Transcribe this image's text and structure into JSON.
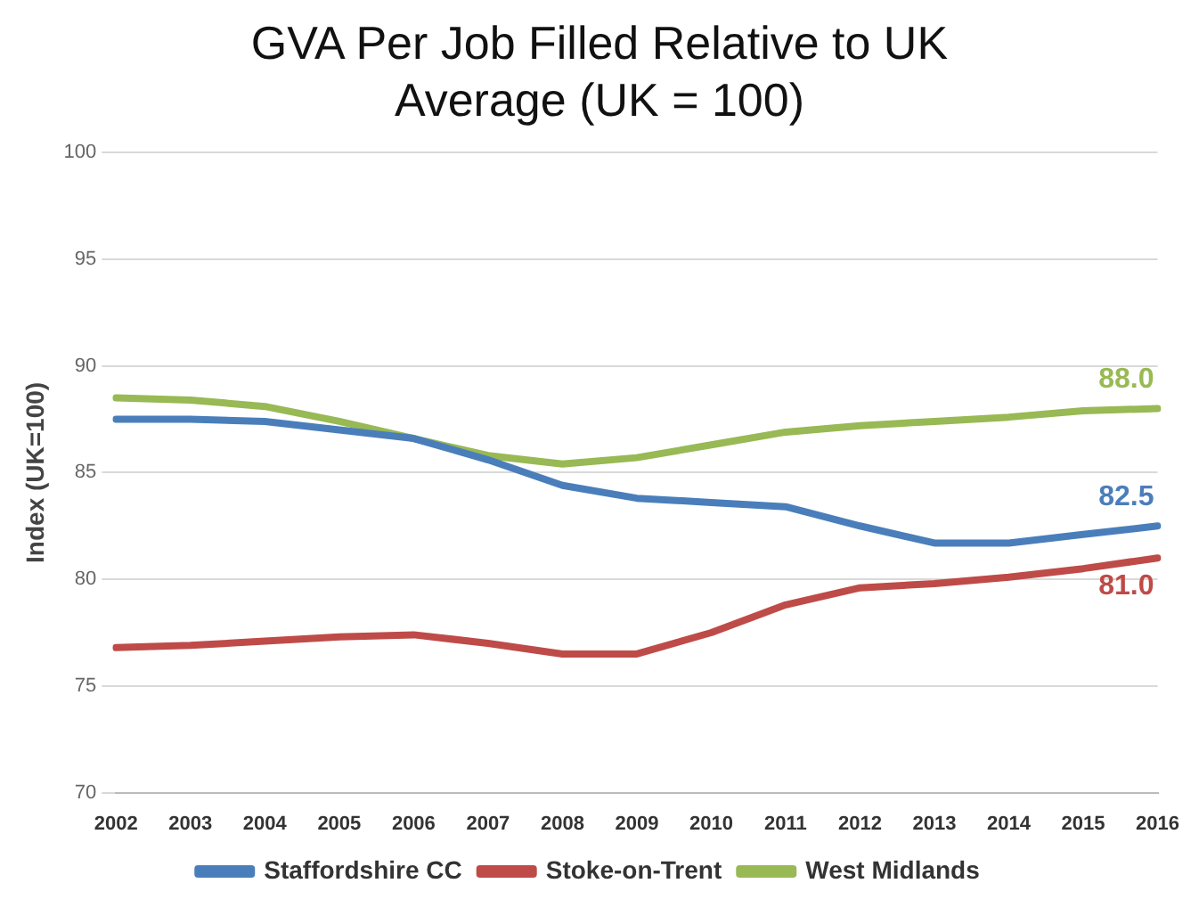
{
  "chart_data": {
    "type": "line",
    "title": "GVA Per Job Filled Relative to UK Average (UK = 100)",
    "ylabel": "Index (UK=100)",
    "categories": [
      "2002",
      "2003",
      "2004",
      "2005",
      "2006",
      "2007",
      "2008",
      "2009",
      "2010",
      "2011",
      "2012",
      "2013",
      "2014",
      "2015",
      "2016"
    ],
    "series": [
      {
        "name": "Staffordshire CC",
        "color": "#4a7ebb",
        "values": [
          87.5,
          87.5,
          87.4,
          87.0,
          86.6,
          85.6,
          84.4,
          83.8,
          83.6,
          83.4,
          82.5,
          81.7,
          81.7,
          82.1,
          82.5
        ],
        "value_labels": [
          null,
          null,
          null,
          null,
          null,
          null,
          null,
          null,
          null,
          null,
          null,
          null,
          null,
          null,
          "82.5"
        ]
      },
      {
        "name": "Stoke-on-Trent",
        "color": "#be4b48",
        "values": [
          76.8,
          76.9,
          77.1,
          77.3,
          77.4,
          77.0,
          76.5,
          76.5,
          77.5,
          78.8,
          79.6,
          79.8,
          80.1,
          80.5,
          81.0
        ],
        "value_labels": [
          null,
          null,
          null,
          null,
          null,
          null,
          null,
          null,
          null,
          null,
          null,
          null,
          null,
          null,
          "81.0"
        ]
      },
      {
        "name": "West Midlands",
        "color": "#98b954",
        "values": [
          88.5,
          88.4,
          88.1,
          87.4,
          86.6,
          85.8,
          85.4,
          85.7,
          86.3,
          86.9,
          87.2,
          87.4,
          87.6,
          87.9,
          88.0
        ],
        "value_labels": [
          null,
          null,
          null,
          null,
          null,
          null,
          null,
          null,
          null,
          null,
          null,
          null,
          null,
          null,
          "88.0"
        ]
      }
    ],
    "ylim": [
      70,
      100
    ],
    "yticks": [
      70,
      75,
      80,
      85,
      90,
      95,
      100
    ],
    "grid": "y",
    "legend": "bottom",
    "marker": "none",
    "line_style": "solid"
  }
}
